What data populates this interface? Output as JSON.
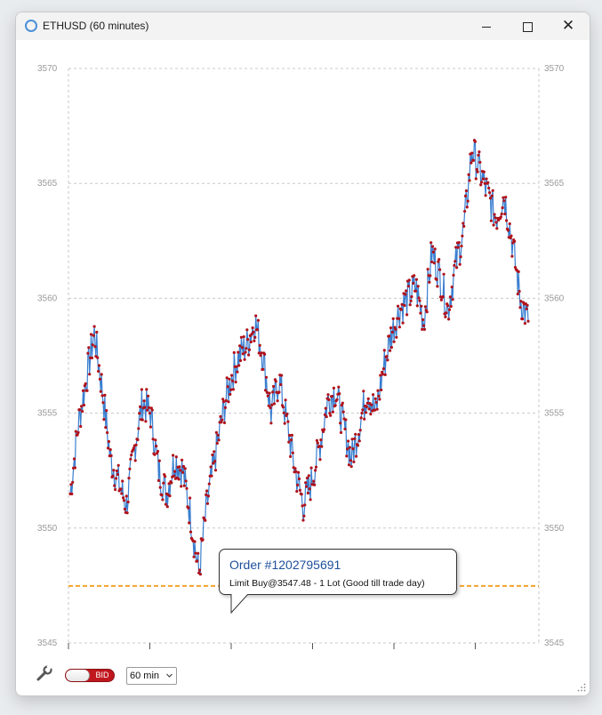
{
  "window": {
    "title": "ETHUSD (60 minutes)",
    "icon": "circle-app-icon",
    "controls": {
      "minimize_icon": "minimize-icon",
      "maximize_icon": "maximize-icon",
      "close_icon": "close-icon",
      "close_glyph": "✕"
    }
  },
  "chart_data": {
    "type": "line",
    "title": "",
    "xlabel": "",
    "ylabel": "",
    "ylim": [
      3545,
      3570
    ],
    "y_ticks": [
      "3545",
      "3550",
      "3555",
      "3560",
      "3565",
      "3570"
    ],
    "grid": true,
    "series": [
      {
        "color": "#b0121b",
        "line_color": "#3a7fd0",
        "x": [
          0,
          0.1,
          0.2,
          0.3,
          0.4,
          0.5,
          0.6,
          0.7,
          0.8,
          0.9,
          1.0,
          1.1,
          1.2,
          1.3,
          1.4,
          1.5,
          1.6,
          1.7,
          1.8,
          1.9,
          2.0,
          2.1,
          2.2,
          2.3,
          2.4,
          2.5,
          2.6,
          2.7,
          2.8,
          2.9,
          3.0,
          3.1,
          3.2,
          3.3,
          3.4,
          3.5,
          3.6,
          3.7,
          3.8,
          3.9,
          4.0,
          4.1,
          4.2,
          4.3,
          4.4,
          4.5,
          4.6,
          4.7,
          4.8,
          4.9,
          5.0,
          5.1,
          5.2,
          5.3,
          5.4,
          5.5,
          5.6,
          5.7
        ],
        "values": [
          3551.5,
          3554.5,
          3556.5,
          3558.5,
          3556.0,
          3553.0,
          3552.0,
          3551.0,
          3553.5,
          3555.5,
          3555.0,
          3552.5,
          3551.5,
          3553.0,
          3552.5,
          3550.5,
          3548.0,
          3551.0,
          3553.0,
          3555.0,
          3556.5,
          3557.5,
          3558.0,
          3559.0,
          3557.5,
          3555.0,
          3556.5,
          3554.5,
          3552.5,
          3551.0,
          3552.0,
          3553.5,
          3555.5,
          3556.0,
          3554.5,
          3553.0,
          3554.5,
          3556.0,
          3555.0,
          3557.0,
          3558.5,
          3559.5,
          3560.0,
          3560.5,
          3559.0,
          3562.0,
          3561.0,
          3559.5,
          3561.5,
          3563.0,
          3566.5,
          3565.5,
          3564.5,
          3563.5,
          3564.5,
          3562.5,
          3560.0,
          3559.0
        ]
      }
    ],
    "limit_order_level": 3547.48,
    "limit_order_color": "#f2a22c"
  },
  "order_tooltip": {
    "title": "Order #1202795691",
    "details": "Limit Buy@3547.48 - 1 Lot (Good till trade day)"
  },
  "toolbar": {
    "settings_icon": "wrench-icon",
    "price_toggle_label": "BID",
    "timeframe_value": "60 min",
    "dropdown_icon": "chevron-down-icon",
    "resize_icon": "resize-grip-icon"
  }
}
